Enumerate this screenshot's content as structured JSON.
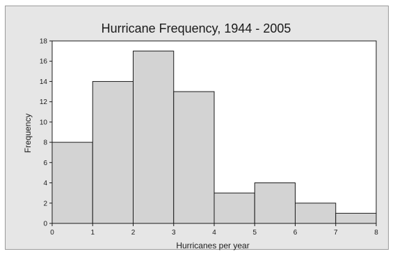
{
  "chart_data": {
    "type": "bar",
    "title": "Hurricane Frequency, 1944 - 2005",
    "xlabel": "Hurricanes per year",
    "ylabel": "Frequency",
    "bins": [
      [
        0,
        1
      ],
      [
        1,
        2
      ],
      [
        2,
        3
      ],
      [
        3,
        4
      ],
      [
        4,
        5
      ],
      [
        5,
        6
      ],
      [
        6,
        7
      ],
      [
        7,
        8
      ]
    ],
    "values": [
      8,
      14,
      17,
      13,
      3,
      4,
      2,
      1
    ],
    "xlim": [
      0,
      8
    ],
    "ylim": [
      0,
      18
    ],
    "xticks": [
      0,
      1,
      2,
      3,
      4,
      5,
      6,
      7,
      8
    ],
    "yticks": [
      0,
      2,
      4,
      6,
      8,
      10,
      12,
      14,
      16,
      18
    ],
    "grid": false,
    "colors": {
      "bar_fill": "#d3d3d3",
      "bar_stroke": "#1a1a1a",
      "plot_bg": "#ffffff",
      "frame_bg": "#e6e6e6"
    }
  }
}
